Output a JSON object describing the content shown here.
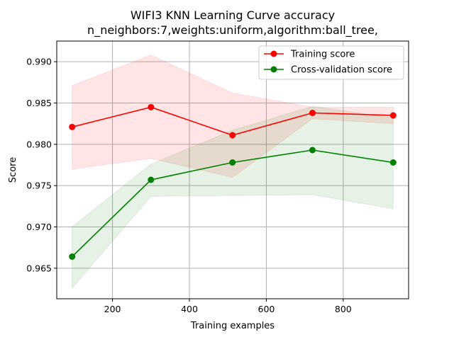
{
  "chart_data": {
    "type": "line",
    "title": "WIFI3 KNN Learning Curve accuracy",
    "subtitle": "n_neighbors:7,weights:uniform,algorithm:ball_tree,",
    "xlabel": "Training examples",
    "ylabel": "Score",
    "xlim": [
      55,
      970
    ],
    "ylim": [
      0.9613,
      0.9925
    ],
    "xticks": [
      200,
      400,
      600,
      800
    ],
    "yticks": [
      0.965,
      0.97,
      0.975,
      0.98,
      0.985,
      0.99
    ],
    "grid": true,
    "legend_position": "top-right",
    "x": [
      95,
      300,
      512,
      720,
      930
    ],
    "series": [
      {
        "name": "Training score",
        "color": "#ff0000",
        "values": [
          0.9821,
          0.9845,
          0.9811,
          0.9838,
          0.9835
        ],
        "band_lower": [
          0.977,
          0.9783,
          0.976,
          0.9831,
          0.9825
        ],
        "band_upper": [
          0.9871,
          0.9908,
          0.9862,
          0.9845,
          0.9845
        ]
      },
      {
        "name": "Cross-validation score",
        "color": "#008000",
        "values": [
          0.9664,
          0.9757,
          0.9778,
          0.9793,
          0.9778
        ],
        "band_lower": [
          0.9626,
          0.9737,
          0.9738,
          0.9739,
          0.9722
        ],
        "band_upper": [
          0.97,
          0.9776,
          0.9817,
          0.9846,
          0.9832
        ]
      }
    ]
  }
}
